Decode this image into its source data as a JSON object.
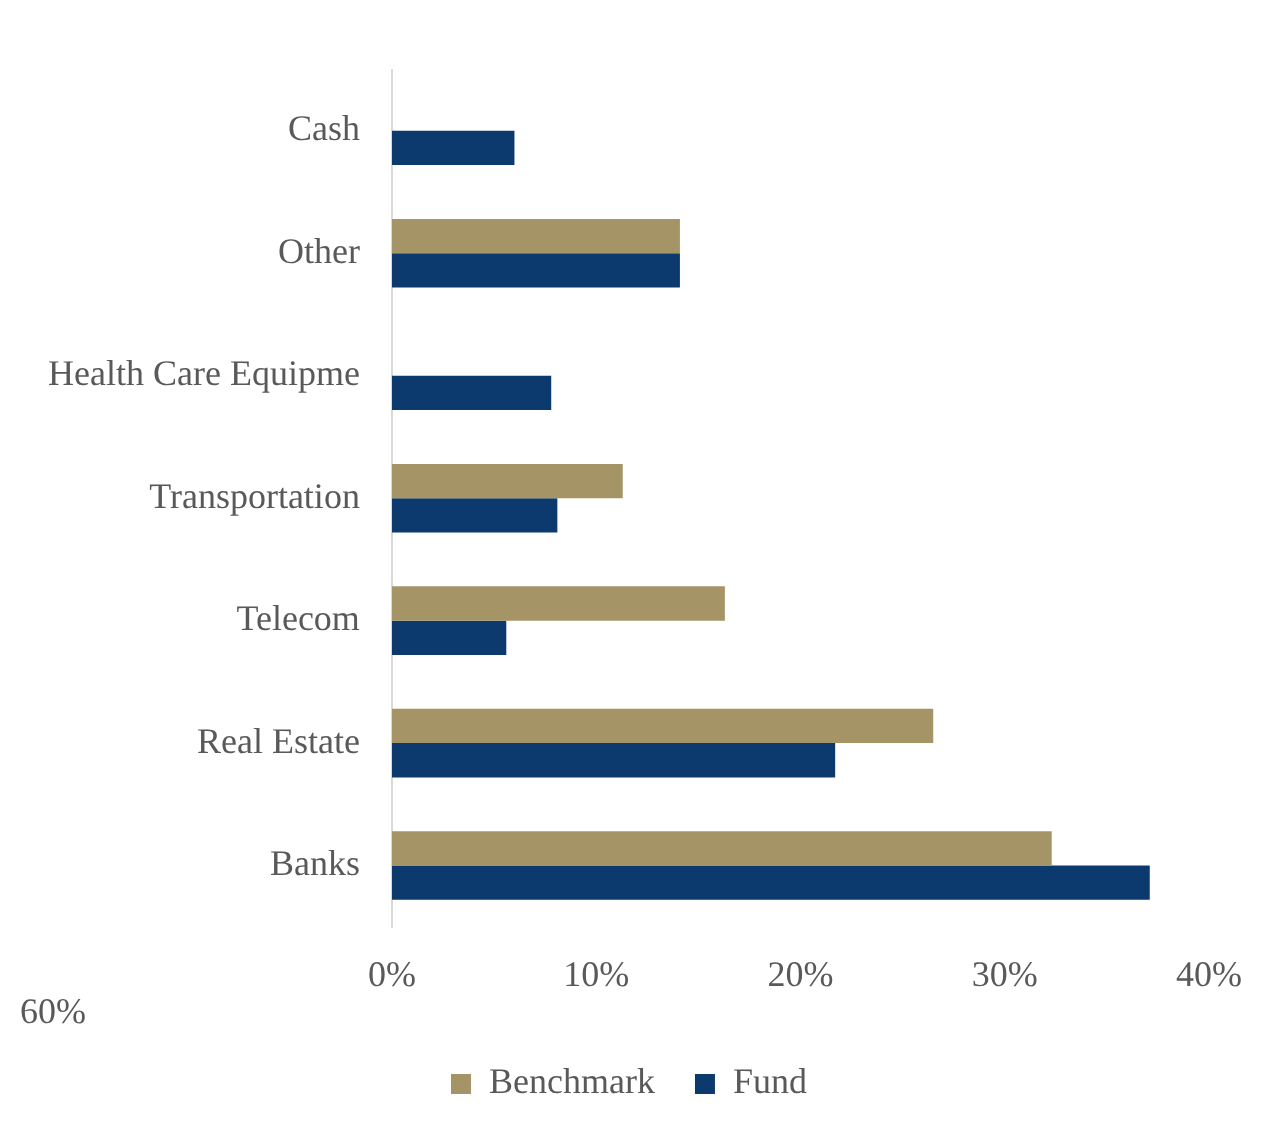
{
  "chart_data": {
    "type": "bar",
    "orientation": "horizontal",
    "categories": [
      "Cash",
      "Other",
      "Health Care Equipme",
      "Transportation",
      "Telecom",
      "Real Estate",
      "Banks"
    ],
    "series": [
      {
        "name": "Benchmark",
        "color": "#a59466",
        "values": [
          null,
          14.1,
          null,
          11.3,
          16.3,
          26.5,
          32.3
        ]
      },
      {
        "name": "Fund",
        "color": "#0d3a6e",
        "values": [
          6.0,
          14.1,
          7.8,
          8.1,
          5.6,
          21.7,
          37.1
        ]
      }
    ],
    "xlim": [
      0,
      40
    ],
    "xticks": [
      {
        "value": 0,
        "label": "0%"
      },
      {
        "value": 10,
        "label": "10%"
      },
      {
        "value": 20,
        "label": "20%"
      },
      {
        "value": 30,
        "label": "30%"
      },
      {
        "value": 40,
        "label": "40%"
      }
    ],
    "grid": false,
    "legend": "bottom",
    "annotations": [
      "60%"
    ]
  }
}
